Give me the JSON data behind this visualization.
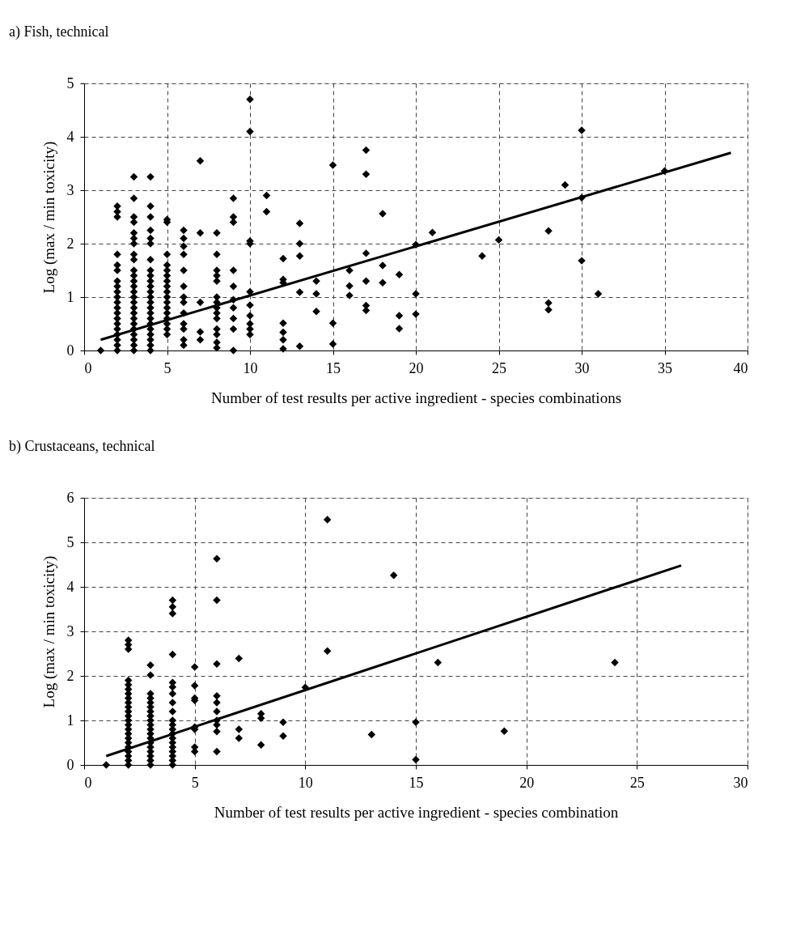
{
  "chart_data": [
    {
      "type": "scatter",
      "title": "a) Fish, technical",
      "xlabel": "Number of test results per active ingredient - species combinations",
      "ylabel": "Log (max / min toxicity)",
      "xlim": [
        0,
        40
      ],
      "xticks": [
        0,
        5,
        10,
        15,
        20,
        25,
        30,
        35,
        40
      ],
      "ylim": [
        0,
        5
      ],
      "yticks": [
        0,
        1,
        2,
        3,
        4,
        5
      ],
      "grid": true,
      "series": [
        {
          "color": "#000000",
          "marker": "diamond",
          "x": [
            1,
            2,
            2,
            2,
            2,
            2,
            2,
            2,
            2,
            2,
            2,
            2,
            2,
            2,
            2,
            2,
            2,
            2,
            2,
            2,
            2,
            3,
            3,
            3,
            3,
            3,
            3,
            3,
            3,
            3,
            3,
            3,
            3,
            3,
            3,
            3,
            3,
            3,
            3,
            3,
            3,
            3,
            3,
            3,
            3,
            3,
            4,
            4,
            4,
            4,
            4,
            4,
            4,
            4,
            4,
            4,
            4,
            4,
            4,
            4,
            4,
            4,
            4,
            4,
            4,
            4,
            4,
            4,
            4,
            5,
            5,
            5,
            5,
            5,
            5,
            5,
            5,
            5,
            5,
            5,
            5,
            5,
            5,
            5,
            5,
            5,
            6,
            6,
            6,
            6,
            6,
            6,
            6,
            6,
            6,
            6,
            6,
            6,
            6,
            7,
            7,
            7,
            7,
            7,
            8,
            8,
            8,
            8,
            8,
            8,
            8,
            8,
            8,
            8,
            8,
            8,
            8,
            8,
            9,
            9,
            9,
            9,
            9,
            9,
            9,
            9,
            9,
            9,
            10,
            10,
            10,
            10,
            10,
            10,
            10,
            10,
            10,
            10,
            11,
            11,
            12,
            12,
            12,
            12,
            12,
            12,
            12,
            13,
            13,
            13,
            13,
            13,
            14,
            14,
            14,
            15,
            15,
            15,
            16,
            16,
            16,
            17,
            17,
            17,
            17,
            17,
            17,
            18,
            18,
            18,
            19,
            19,
            19,
            20,
            20,
            20,
            21,
            24,
            25,
            28,
            28,
            28,
            29,
            30,
            30,
            30,
            31,
            35
          ],
          "values": [
            0,
            0,
            0.1,
            0.2,
            0.3,
            0.4,
            0.5,
            0.6,
            0.7,
            0.8,
            0.9,
            1.0,
            1.1,
            1.2,
            1.3,
            1.5,
            1.6,
            1.8,
            2.5,
            2.6,
            2.7,
            0,
            0.1,
            0.2,
            0.3,
            0.4,
            0.5,
            0.6,
            0.7,
            0.8,
            0.9,
            1.0,
            1.1,
            1.2,
            1.3,
            1.4,
            1.5,
            1.7,
            1.8,
            2.0,
            2.1,
            2.2,
            2.4,
            2.5,
            2.85,
            3.25,
            0,
            0.1,
            0.2,
            0.3,
            0.4,
            0.5,
            0.6,
            0.7,
            0.8,
            0.9,
            1.0,
            1.1,
            1.2,
            1.3,
            1.4,
            1.5,
            1.7,
            2.0,
            2.1,
            2.25,
            2.5,
            2.7,
            3.25,
            0.3,
            0.4,
            0.5,
            0.6,
            0.7,
            0.8,
            0.9,
            1.0,
            1.1,
            1.2,
            1.3,
            1.4,
            1.5,
            1.6,
            1.8,
            2.4,
            2.45,
            0.1,
            0.2,
            0.4,
            0.5,
            0.7,
            0.9,
            1.0,
            1.2,
            1.5,
            1.8,
            1.95,
            2.1,
            2.25,
            0.2,
            0.35,
            0.9,
            2.2,
            3.55,
            0.05,
            0.15,
            0.3,
            0.4,
            0.6,
            0.7,
            0.8,
            0.9,
            1.0,
            1.3,
            1.4,
            1.5,
            1.8,
            2.2,
            0,
            0.4,
            0.6,
            0.8,
            0.95,
            1.2,
            1.5,
            2.4,
            2.5,
            2.85,
            0.3,
            0.4,
            0.5,
            0.65,
            0.85,
            1.1,
            2.0,
            2.05,
            4.1,
            4.7,
            2.6,
            2.9,
            1.72,
            1.33,
            1.27,
            0.51,
            0.34,
            0.2,
            0.03,
            2.38,
            2.0,
            1.77,
            1.09,
            0.08,
            1.3,
            1.06,
            0.73,
            3.47,
            0.51,
            0.12,
            1.5,
            1.21,
            1.03,
            3.75,
            3.3,
            1.82,
            1.3,
            0.84,
            0.75,
            2.56,
            1.59,
            1.27,
            1.42,
            0.65,
            0.41,
            1.98,
            1.06,
            0.68,
            2.21,
            1.77,
            2.07,
            2.24,
            0.89,
            0.76,
            3.1,
            4.12,
            2.86,
            1.68,
            1.06,
            3.36
          ]
        },
        {
          "type": "line",
          "color": "#000000",
          "marker": "none",
          "x": [
            1,
            39
          ],
          "values": [
            0.2,
            3.7
          ]
        }
      ]
    },
    {
      "type": "scatter",
      "title": "b) Crustaceans, technical",
      "xlabel": "Number of test results per active ingredient - species combination",
      "ylabel": "Log (max / min toxicity)",
      "xlim": [
        0,
        30
      ],
      "xticks": [
        0,
        5,
        10,
        15,
        20,
        25,
        30
      ],
      "ylim": [
        0,
        6
      ],
      "yticks": [
        0,
        1,
        2,
        3,
        4,
        5,
        6
      ],
      "grid": true,
      "series": [
        {
          "color": "#000000",
          "marker": "diamond",
          "x": [
            1,
            2,
            2,
            2,
            2,
            2,
            2,
            2,
            2,
            2,
            2,
            2,
            2,
            2,
            2,
            2,
            2,
            2,
            2,
            2,
            2,
            2,
            2,
            2,
            3,
            3,
            3,
            3,
            3,
            3,
            3,
            3,
            3,
            3,
            3,
            3,
            3,
            3,
            3,
            3,
            3,
            3,
            3,
            4,
            4,
            4,
            4,
            4,
            4,
            4,
            4,
            4,
            4,
            4,
            4,
            4,
            4,
            4,
            4,
            4,
            4,
            4,
            4,
            5,
            5,
            5,
            5,
            5,
            5,
            5,
            5,
            6,
            6,
            6,
            6,
            6,
            6,
            6,
            6,
            6,
            6,
            7,
            7,
            7,
            8,
            8,
            8,
            9,
            9,
            10,
            11,
            11,
            13,
            14,
            15,
            15,
            16,
            19,
            24
          ],
          "values": [
            0,
            0,
            0.1,
            0.2,
            0.3,
            0.4,
            0.5,
            0.6,
            0.7,
            0.8,
            0.9,
            1.0,
            1.1,
            1.2,
            1.3,
            1.4,
            1.5,
            1.6,
            1.7,
            1.8,
            1.9,
            2.6,
            2.7,
            2.8,
            0,
            0.1,
            0.2,
            0.3,
            0.4,
            0.5,
            0.6,
            0.7,
            0.8,
            0.9,
            1.0,
            1.1,
            1.2,
            1.3,
            1.4,
            1.5,
            1.6,
            2.02,
            2.24,
            0,
            0.1,
            0.2,
            0.3,
            0.4,
            0.5,
            0.6,
            0.7,
            0.8,
            0.9,
            1.0,
            1.2,
            1.4,
            1.6,
            1.75,
            1.85,
            2.48,
            3.4,
            3.55,
            3.7,
            0.3,
            0.4,
            0.8,
            0.85,
            1.45,
            1.5,
            1.78,
            2.2,
            0.3,
            0.75,
            0.9,
            1.0,
            1.2,
            1.4,
            1.55,
            2.27,
            3.7,
            4.63,
            0.6,
            0.8,
            2.39,
            0.45,
            1.05,
            1.15,
            0.65,
            0.96,
            1.74,
            2.56,
            5.51,
            0.68,
            4.26,
            0.12,
            0.96,
            2.3,
            0.76,
            2.3
          ]
        },
        {
          "type": "line",
          "color": "#000000",
          "marker": "none",
          "x": [
            1,
            27
          ],
          "values": [
            0.2,
            4.48
          ]
        }
      ]
    }
  ]
}
